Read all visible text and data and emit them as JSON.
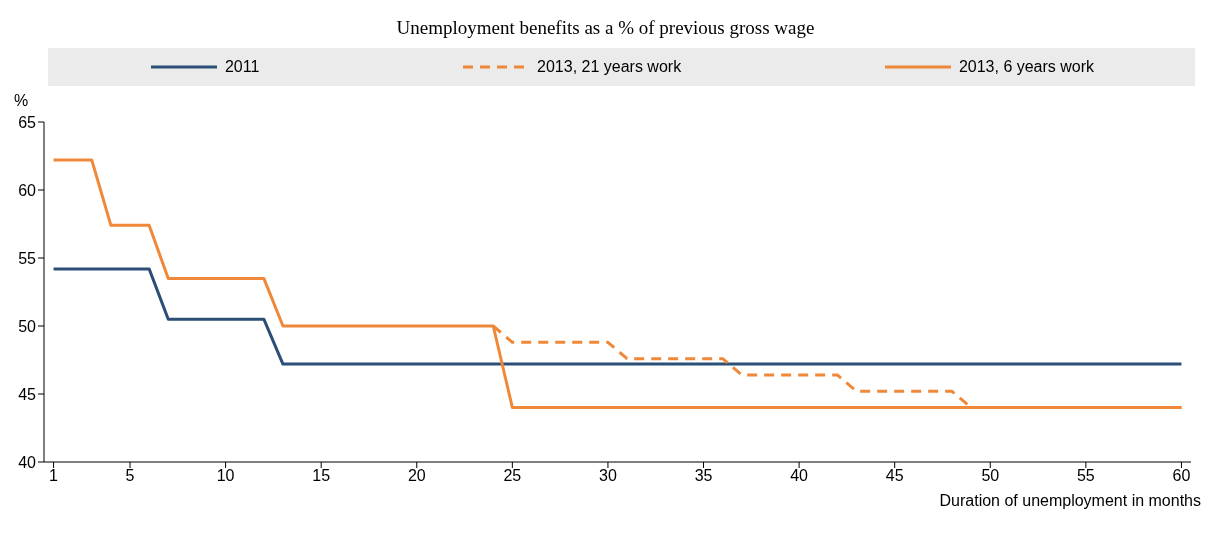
{
  "chart_data": {
    "type": "line",
    "title": "Unemployment benefits as a % of previous gross wage",
    "xlabel": "Duration of unemployment in months",
    "ylabel": "%",
    "x": [
      1,
      2,
      3,
      4,
      5,
      6,
      7,
      8,
      9,
      10,
      11,
      12,
      13,
      14,
      15,
      16,
      17,
      18,
      19,
      20,
      21,
      22,
      23,
      24,
      25,
      26,
      27,
      28,
      29,
      30,
      31,
      32,
      33,
      34,
      35,
      36,
      37,
      38,
      39,
      40,
      41,
      42,
      43,
      44,
      45,
      46,
      47,
      48,
      49,
      50,
      51,
      52,
      53,
      54,
      55,
      56,
      57,
      58,
      59,
      60
    ],
    "xlim": [
      0.5,
      60.5
    ],
    "xticks": [
      1,
      5,
      10,
      15,
      20,
      25,
      30,
      35,
      40,
      45,
      50,
      55,
      60
    ],
    "ylim": [
      40,
      65
    ],
    "yticks": [
      40,
      45,
      50,
      55,
      60,
      65
    ],
    "legend": "top",
    "series": [
      {
        "name": "2011",
        "color": "#2b4f76",
        "values": [
          54.2,
          54.2,
          54.2,
          54.2,
          54.2,
          54.2,
          50.5,
          50.5,
          50.5,
          50.5,
          50.5,
          50.5,
          47.2,
          47.2,
          47.2,
          47.2,
          47.2,
          47.2,
          47.2,
          47.2,
          47.2,
          47.2,
          47.2,
          47.2,
          47.2,
          47.2,
          47.2,
          47.2,
          47.2,
          47.2,
          47.2,
          47.2,
          47.2,
          47.2,
          47.2,
          47.2,
          47.2,
          47.2,
          47.2,
          47.2,
          47.2,
          47.2,
          47.2,
          47.2,
          47.2,
          47.2,
          47.2,
          47.2,
          47.2,
          47.2,
          47.2,
          47.2,
          47.2,
          47.2,
          47.2,
          47.2,
          47.2,
          47.2,
          47.2,
          47.2
        ]
      },
      {
        "name": "2013, 21 years work",
        "color": "#f0883a",
        "line_style": "dashed",
        "values": [
          null,
          null,
          null,
          null,
          null,
          null,
          null,
          null,
          null,
          null,
          null,
          null,
          null,
          null,
          null,
          null,
          null,
          null,
          null,
          null,
          null,
          null,
          null,
          50,
          48.8,
          48.8,
          48.8,
          48.8,
          48.8,
          48.8,
          47.6,
          47.6,
          47.6,
          47.6,
          47.6,
          47.6,
          46.4,
          46.4,
          46.4,
          46.4,
          46.4,
          46.4,
          45.2,
          45.2,
          45.2,
          45.2,
          45.2,
          45.2,
          44,
          44,
          44,
          44,
          44,
          44,
          44,
          44,
          44,
          44,
          44,
          44
        ]
      },
      {
        "name": "2013, 6 years work",
        "color": "#f0883a",
        "line_style": "solid",
        "values": [
          62.2,
          62.2,
          62.2,
          57.4,
          57.4,
          57.4,
          53.5,
          53.5,
          53.5,
          53.5,
          53.5,
          53.5,
          50,
          50,
          50,
          50,
          50,
          50,
          50,
          50,
          50,
          50,
          50,
          50,
          44,
          44,
          44,
          44,
          44,
          44,
          44,
          44,
          44,
          44,
          44,
          44,
          44,
          44,
          44,
          44,
          44,
          44,
          44,
          44,
          44,
          44,
          44,
          44,
          44,
          44,
          44,
          44,
          44,
          44,
          44,
          44,
          44,
          44,
          44,
          44
        ]
      }
    ]
  }
}
